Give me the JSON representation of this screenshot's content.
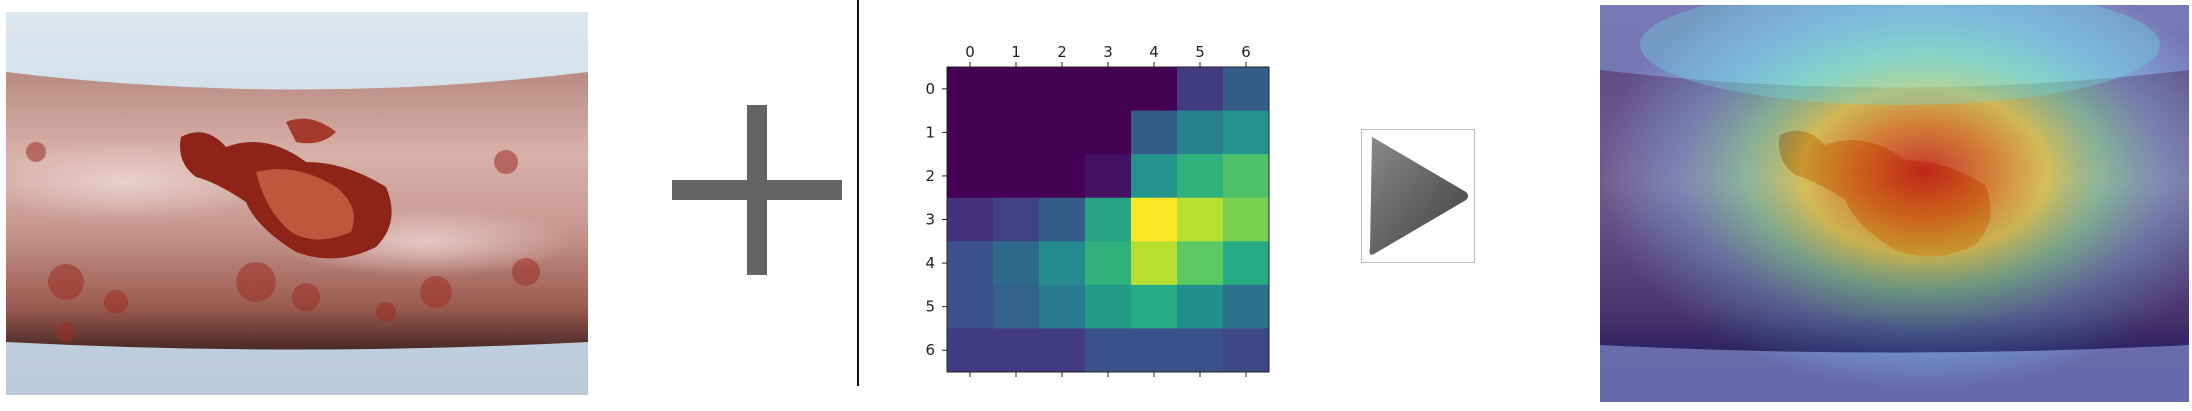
{
  "colors": {
    "plus": "#646464",
    "divider": "#111111",
    "skin": "#c08a7c",
    "background_sheet": "#cfdde9",
    "wound": "#8e2418"
  },
  "icons": {
    "plus": "plus-icon",
    "arrow": "play-arrow-icon"
  },
  "chart_data": {
    "type": "heatmap",
    "colormap": "viridis",
    "x_ticks": [
      "0",
      "1",
      "2",
      "3",
      "4",
      "5",
      "6"
    ],
    "y_ticks": [
      "0",
      "1",
      "2",
      "3",
      "4",
      "5",
      "6"
    ],
    "x_tick_position": "top",
    "values": [
      [
        0.0,
        0.0,
        0.0,
        0.0,
        0.0,
        0.18,
        0.3
      ],
      [
        0.0,
        0.0,
        0.0,
        0.0,
        0.3,
        0.45,
        0.52
      ],
      [
        0.0,
        0.0,
        0.0,
        0.05,
        0.52,
        0.65,
        0.72
      ],
      [
        0.15,
        0.2,
        0.3,
        0.6,
        1.0,
        0.9,
        0.8
      ],
      [
        0.25,
        0.35,
        0.48,
        0.65,
        0.9,
        0.75,
        0.62
      ],
      [
        0.25,
        0.32,
        0.42,
        0.55,
        0.62,
        0.5,
        0.38
      ],
      [
        0.18,
        0.18,
        0.18,
        0.25,
        0.25,
        0.25,
        0.22
      ]
    ]
  }
}
